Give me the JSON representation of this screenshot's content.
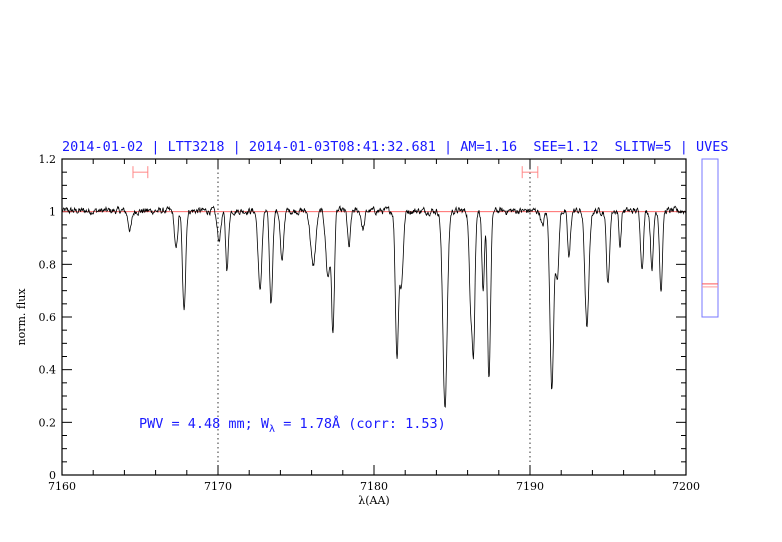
{
  "chart_data": {
    "type": "line",
    "title": "2014-01-02 | LTT3218 | 2014-01-03T08:41:32.681 | AM=1.16  SEE=1.12  SLITW=5 | UVES",
    "xlabel": "λ(AA)",
    "ylabel": "norm. flux",
    "xlim": [
      7160,
      7200
    ],
    "ylim": [
      0,
      1.2
    ],
    "xticks": [
      "7160",
      "7170",
      "7180",
      "7190",
      "7200"
    ],
    "yticks": [
      "0",
      "0.2",
      "0.4",
      "0.6",
      "0.8",
      "1",
      "1.2"
    ],
    "grid": false,
    "continuum": 1.0,
    "dotted_verticals": [
      7170,
      7190
    ],
    "error_bars": [
      {
        "x_from": 7164.55,
        "x_to": 7165.5,
        "y": 1.15
      },
      {
        "x_from": 7189.5,
        "x_to": 7190.5,
        "y": 1.15
      }
    ],
    "annotation": {
      "prefix": "PWV = 4.48 mm; W",
      "subscript": "λ",
      "suffix": " = 1.78Å (corr: 1.53)"
    },
    "absorption_lines": [
      {
        "x": 7164.36,
        "min": 0.93,
        "w": 0.12
      },
      {
        "x": 7167.31,
        "min": 0.85,
        "w": 0.1
      },
      {
        "x": 7167.82,
        "min": 0.62,
        "w": 0.1
      },
      {
        "x": 7170.06,
        "min": 0.89,
        "w": 0.12
      },
      {
        "x": 7170.58,
        "min": 0.78,
        "w": 0.09
      },
      {
        "x": 7172.69,
        "min": 0.7,
        "w": 0.12
      },
      {
        "x": 7173.4,
        "min": 0.65,
        "w": 0.1
      },
      {
        "x": 7174.1,
        "min": 0.8,
        "w": 0.1
      },
      {
        "x": 7176.1,
        "min": 0.79,
        "w": 0.16
      },
      {
        "x": 7177.05,
        "min": 0.75,
        "w": 0.14
      },
      {
        "x": 7177.37,
        "min": 0.54,
        "w": 0.09
      },
      {
        "x": 7178.4,
        "min": 0.86,
        "w": 0.09
      },
      {
        "x": 7179.3,
        "min": 0.93,
        "w": 0.1
      },
      {
        "x": 7181.47,
        "min": 0.455,
        "w": 0.1
      },
      {
        "x": 7181.75,
        "min": 0.72,
        "w": 0.12
      },
      {
        "x": 7184.55,
        "min": 0.26,
        "w": 0.14
      },
      {
        "x": 7186.2,
        "min": 0.66,
        "w": 0.1
      },
      {
        "x": 7186.38,
        "min": 0.48,
        "w": 0.09
      },
      {
        "x": 7187.0,
        "min": 0.68,
        "w": 0.08
      },
      {
        "x": 7187.37,
        "min": 0.37,
        "w": 0.1
      },
      {
        "x": 7190.8,
        "min": 0.94,
        "w": 0.1
      },
      {
        "x": 7191.4,
        "min": 0.32,
        "w": 0.12
      },
      {
        "x": 7191.75,
        "min": 0.74,
        "w": 0.1
      },
      {
        "x": 7192.5,
        "min": 0.82,
        "w": 0.09
      },
      {
        "x": 7193.65,
        "min": 0.56,
        "w": 0.13
      },
      {
        "x": 7195.0,
        "min": 0.72,
        "w": 0.1
      },
      {
        "x": 7195.77,
        "min": 0.865,
        "w": 0.07
      },
      {
        "x": 7197.18,
        "min": 0.785,
        "w": 0.09
      },
      {
        "x": 7197.82,
        "min": 0.785,
        "w": 0.09
      },
      {
        "x": 7198.4,
        "min": 0.695,
        "w": 0.09
      }
    ],
    "side_indicator_level": 0.2,
    "colors": {
      "spectrum": "#000000",
      "continuum": "#ff5555",
      "text": "#1a1aff",
      "error_bar": "#ff8888",
      "indicator_box": "#7777ff"
    }
  }
}
